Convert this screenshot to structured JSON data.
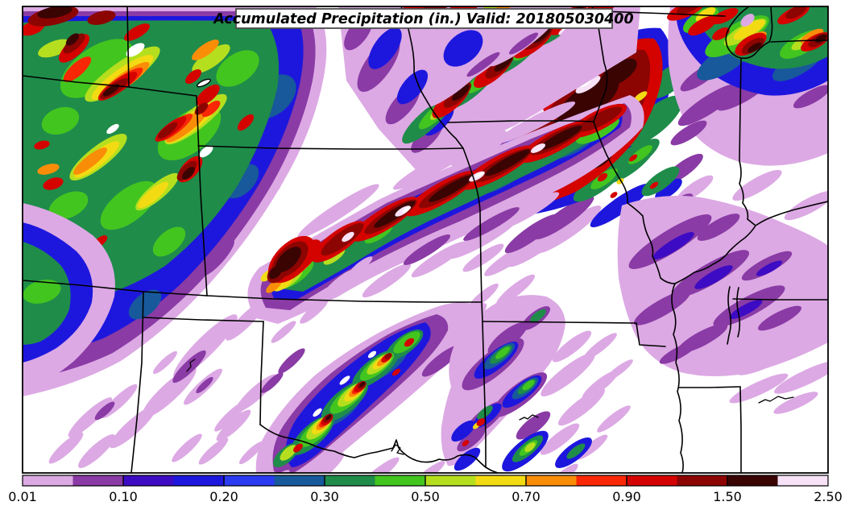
{
  "title": {
    "text": "Accumulated Precipitation (in.) Valid: 201805030400"
  },
  "colorbar": {
    "labels": [
      "0.01",
      "0.10",
      "0.20",
      "0.30",
      "0.50",
      "0.70",
      "0.90",
      "1.50",
      "2.50"
    ],
    "boundary_values": [
      0.01,
      0.05,
      0.1,
      0.15,
      0.2,
      0.25,
      0.3,
      0.4,
      0.5,
      0.6,
      0.7,
      0.8,
      0.9,
      1.2,
      1.5,
      2.0,
      2.5
    ],
    "segment_colors": [
      "#DCA9E4",
      "#8A3BA5",
      "#3D0BC4",
      "#1D17DE",
      "#2B3BF2",
      "#17599B",
      "#1F8C4A",
      "#43C51F",
      "#B5DF1E",
      "#F3DB13",
      "#FA8D08",
      "#F92706",
      "#D40300",
      "#8C0502",
      "#3A0403",
      "#F7E2F7"
    ],
    "units": "in."
  },
  "colors": {
    "land": "#ffffff",
    "line": "#000000",
    "frame": "#000000",
    "title_bg": "#ffffff",
    "title_border": "#4d4d4d",
    "c001": "#DCA9E4",
    "c005": "#8A3BA5",
    "c010": "#3D0BC4",
    "c015": "#1D17DE",
    "c020": "#2B3BF2",
    "c025": "#17599B",
    "c030": "#1F8C4A",
    "c040": "#43C51F",
    "c050": "#B5DF1E",
    "c060": "#F3DB13",
    "c070": "#FA8D08",
    "c080": "#F92706",
    "c090": "#D40300",
    "c120": "#8C0502",
    "c150": "#3A0403",
    "c200": "#F7E2F7"
  },
  "chart_data": {
    "type": "heatmap",
    "title": "Accumulated Precipitation (in.) Valid: 201805030400",
    "subtitle": "",
    "units": "inches",
    "legend_position": "bottom",
    "legend_tick_labels": [
      "0.01",
      "0.10",
      "0.20",
      "0.30",
      "0.50",
      "0.70",
      "0.90",
      "1.50",
      "2.50"
    ],
    "contour_levels_inches": [
      0.01,
      0.05,
      0.1,
      0.15,
      0.2,
      0.25,
      0.3,
      0.4,
      0.5,
      0.6,
      0.7,
      0.8,
      0.9,
      1.2,
      1.5,
      2.0,
      2.5
    ],
    "contour_colors": [
      "#DCA9E4",
      "#8A3BA5",
      "#3D0BC4",
      "#1D17DE",
      "#2B3BF2",
      "#17599B",
      "#1F8C4A",
      "#43C51F",
      "#B5DF1E",
      "#F3DB13",
      "#FA8D08",
      "#F92706",
      "#D40300",
      "#8C0502",
      "#3A0403",
      "#F7E2F7"
    ],
    "max_band_depicted_inches": 2.5
  }
}
